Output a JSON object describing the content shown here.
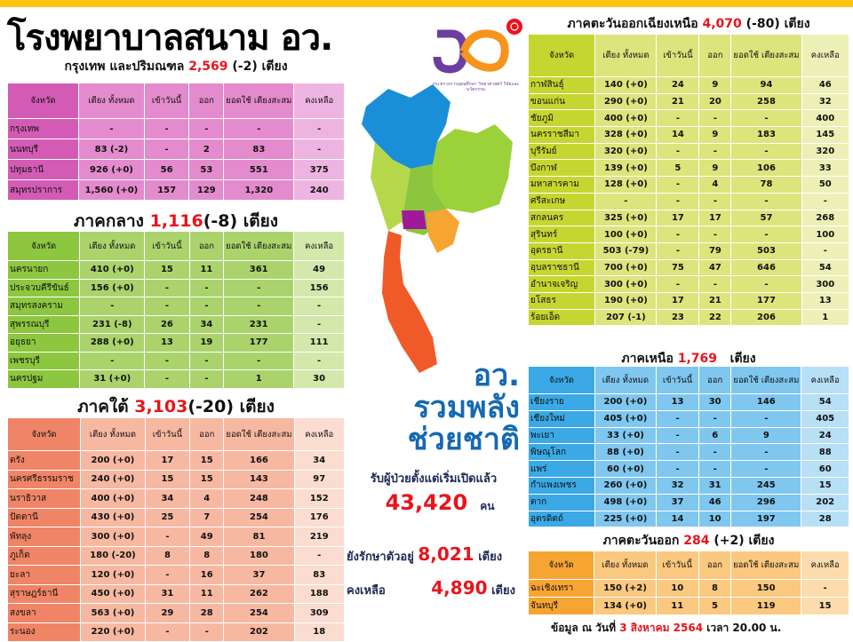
{
  "title": "โรงพยาบาลสนาม อว.",
  "logo": {
    "text": "อว",
    "caption": "กระทรวงการอุดมศึกษา วิทยาศาสตร์ วิจัยและนวัตกรรม",
    "colors": [
      "#6b3fa0",
      "#f7941d",
      "#e8141c"
    ]
  },
  "columns": [
    "จังหวัด",
    "เตียง ทั้งหมด",
    "เข้าวันนี้",
    "ออก",
    "ยอดใช้ เตียงสะสม",
    "คงเหลือ"
  ],
  "regions": {
    "bangkok": {
      "name": "กรุงเทพ และปริมณฑล",
      "total": "2,569",
      "change": "(-2)",
      "unit": "เตียง",
      "colors": {
        "prov": "#d35bb5",
        "cell": "#e38bcc",
        "remain": "#eeb4e1"
      },
      "rows": [
        [
          "กรุงเทพ",
          "-",
          "-",
          "-",
          "-",
          "-"
        ],
        [
          "นนทบุรี",
          "83 (-2)",
          "-",
          "2",
          "83",
          "-"
        ],
        [
          "ปทุมธานี",
          "926 (+0)",
          "56",
          "53",
          "551",
          "375"
        ],
        [
          "สมุทรปราการ",
          "1,560 (+0)",
          "157",
          "129",
          "1,320",
          "240"
        ]
      ]
    },
    "central": {
      "name": "ภาคกลาง",
      "total": "1,116",
      "change": "(-8)",
      "unit": "เตียง",
      "colors": {
        "prov": "#8dc63f",
        "cell": "#aad36c",
        "remain": "#d3e8ab"
      },
      "rows": [
        [
          "นครนายก",
          "410 (+0)",
          "15",
          "11",
          "361",
          "49"
        ],
        [
          "ประจวบคีรีขันธ์",
          "156 (+0)",
          "-",
          "-",
          "-",
          "156"
        ],
        [
          "สมุทรสงคราม",
          "-",
          "-",
          "-",
          "-",
          "-"
        ],
        [
          "สุพรรณบุรี",
          "231 (-8)",
          "26",
          "34",
          "231",
          "-"
        ],
        [
          "อยุธยา",
          "288 (+0)",
          "13",
          "19",
          "177",
          "111"
        ],
        [
          "เพชรบุรี",
          "-",
          "-",
          "-",
          "-",
          "-"
        ],
        [
          "นครปฐม",
          "31 (+0)",
          "-",
          "-",
          "1",
          "30"
        ]
      ]
    },
    "south": {
      "name": "ภาคใต้",
      "total": "3,103",
      "change": "(-20)",
      "unit": "เตียง",
      "colors": {
        "prov": "#f08466",
        "cell": "#f7b8a1",
        "remain": "#fbdcd0"
      },
      "rows": [
        [
          "ตรัง",
          "200 (+0)",
          "17",
          "15",
          "166",
          "34"
        ],
        [
          "นครศรีธรรมราช",
          "240 (+0)",
          "15",
          "15",
          "143",
          "97"
        ],
        [
          "นราธิวาส",
          "400 (+0)",
          "34",
          "4",
          "248",
          "152"
        ],
        [
          "ปัตตานี",
          "430 (+0)",
          "25",
          "7",
          "254",
          "176"
        ],
        [
          "พัทลุง",
          "300 (+0)",
          "-",
          "49",
          "81",
          "219"
        ],
        [
          "ภูเก็ต",
          "180 (-20)",
          "8",
          "8",
          "180",
          "-"
        ],
        [
          "ยะลา",
          "120 (+0)",
          "-",
          "16",
          "37",
          "83"
        ],
        [
          "สุราษฎร์ธานี",
          "450 (+0)",
          "31",
          "11",
          "262",
          "188"
        ],
        [
          "สงขลา",
          "563 (+0)",
          "29",
          "28",
          "254",
          "309"
        ],
        [
          "ระนอง",
          "220 (+0)",
          "-",
          "-",
          "202",
          "18"
        ]
      ]
    },
    "northeast": {
      "name": "ภาคตะวันออกเฉียงเหนือ",
      "total": "4,070",
      "change": "(-80)",
      "unit": "เตียง",
      "colors": {
        "prov": "#c6d630",
        "cell": "#dce47c",
        "remain": "#edf0b6"
      },
      "rows": [
        [
          "กาฬสินธุ์",
          "140 (+0)",
          "24",
          "9",
          "94",
          "46"
        ],
        [
          "ขอนแก่น",
          "290 (+0)",
          "21",
          "20",
          "258",
          "32"
        ],
        [
          "ชัยภูมิ",
          "400 (+0)",
          "-",
          "-",
          "-",
          "400"
        ],
        [
          "นครราชสีมา",
          "328 (+0)",
          "14",
          "9",
          "183",
          "145"
        ],
        [
          "บุรีรัมย์",
          "320 (+0)",
          "-",
          "-",
          "-",
          "320"
        ],
        [
          "บึงกาฬ",
          "139 (+0)",
          "5",
          "9",
          "106",
          "33"
        ],
        [
          "มหาสารคาม",
          "128 (+0)",
          "-",
          "4",
          "78",
          "50"
        ],
        [
          "ศรีสะเกษ",
          "-",
          "-",
          "-",
          "-",
          "-"
        ],
        [
          "สกลนคร",
          "325 (+0)",
          "17",
          "17",
          "57",
          "268"
        ],
        [
          "สุรินทร์",
          "100 (+0)",
          "-",
          "-",
          "-",
          "100"
        ],
        [
          "อุดรธานี",
          "503 (-79)",
          "-",
          "79",
          "503",
          "-"
        ],
        [
          "อุบลราชธานี",
          "700 (+0)",
          "75",
          "47",
          "646",
          "54"
        ],
        [
          "อำนาจเจริญ",
          "300 (+0)",
          "-",
          "-",
          "-",
          "300"
        ],
        [
          "ยโสธร",
          "190 (+0)",
          "17",
          "21",
          "177",
          "13"
        ],
        [
          "ร้อยเอ็ด",
          "207 (-1)",
          "23",
          "22",
          "206",
          "1"
        ]
      ]
    },
    "north": {
      "name": "ภาคเหนือ",
      "total": "1,769",
      "change": "",
      "unit": "เตียง",
      "colors": {
        "prov": "#3ba9e5",
        "cell": "#80c7ef",
        "remain": "#b7dff6"
      },
      "rows": [
        [
          "เชียงราย",
          "200 (+0)",
          "13",
          "30",
          "146",
          "54"
        ],
        [
          "เชียงใหม่",
          "405 (+0)",
          "-",
          "-",
          "-",
          "405"
        ],
        [
          "พะเยา",
          "33 (+0)",
          "-",
          "6",
          "9",
          "24"
        ],
        [
          "พิษณุโลก",
          "88 (+0)",
          "-",
          "-",
          "-",
          "88"
        ],
        [
          "แพร่",
          "60 (+0)",
          "-",
          "-",
          "-",
          "60"
        ],
        [
          "กำแพงเพชร",
          "260 (+0)",
          "32",
          "31",
          "245",
          "15"
        ],
        [
          "ตาก",
          "498 (+0)",
          "37",
          "46",
          "296",
          "202"
        ],
        [
          "อุตรดิตถ์",
          "225 (+0)",
          "14",
          "10",
          "197",
          "28"
        ]
      ]
    },
    "east": {
      "name": "ภาคตะวันออก",
      "total": "284",
      "change": "(+2)",
      "unit": "เตียง",
      "colors": {
        "prov": "#f7a532",
        "cell": "#fac87e",
        "remain": "#fcdcac"
      },
      "rows": [
        [
          "ฉะเชิงเทรา",
          "150 (+2)",
          "10",
          "8",
          "150",
          "-"
        ],
        [
          "จันทบุรี",
          "134 (+0)",
          "11",
          "5",
          "119",
          "15"
        ]
      ]
    }
  },
  "slogan": [
    "อว.",
    "รวมพลัง",
    "ช่วยชาติ"
  ],
  "admitted": {
    "label": "รับผู้ป่วยตั้งแต่เริ่มเปิดแล้ว",
    "value": "43,420",
    "unit": "คน"
  },
  "treating": {
    "label": "ยังรักษาตัวอยู่",
    "value": "8,021",
    "unit": "เตียง"
  },
  "remaining": {
    "label": "คงเหลือ",
    "value": "4,890",
    "unit": "เตียง"
  },
  "footer": {
    "prefix": "ข้อมูล ณ วันที่",
    "date": "3 สิงหาคม 2564",
    "time_label": "เวลา",
    "time": "20.00 น."
  },
  "map_colors": {
    "north": "#1a8fd8",
    "northeast": "#9bd23a",
    "central": "#8cc63f",
    "bangkok": "#a0199a",
    "east": "#f7a532",
    "west": "#b5d84a",
    "south": "#f05a28"
  }
}
